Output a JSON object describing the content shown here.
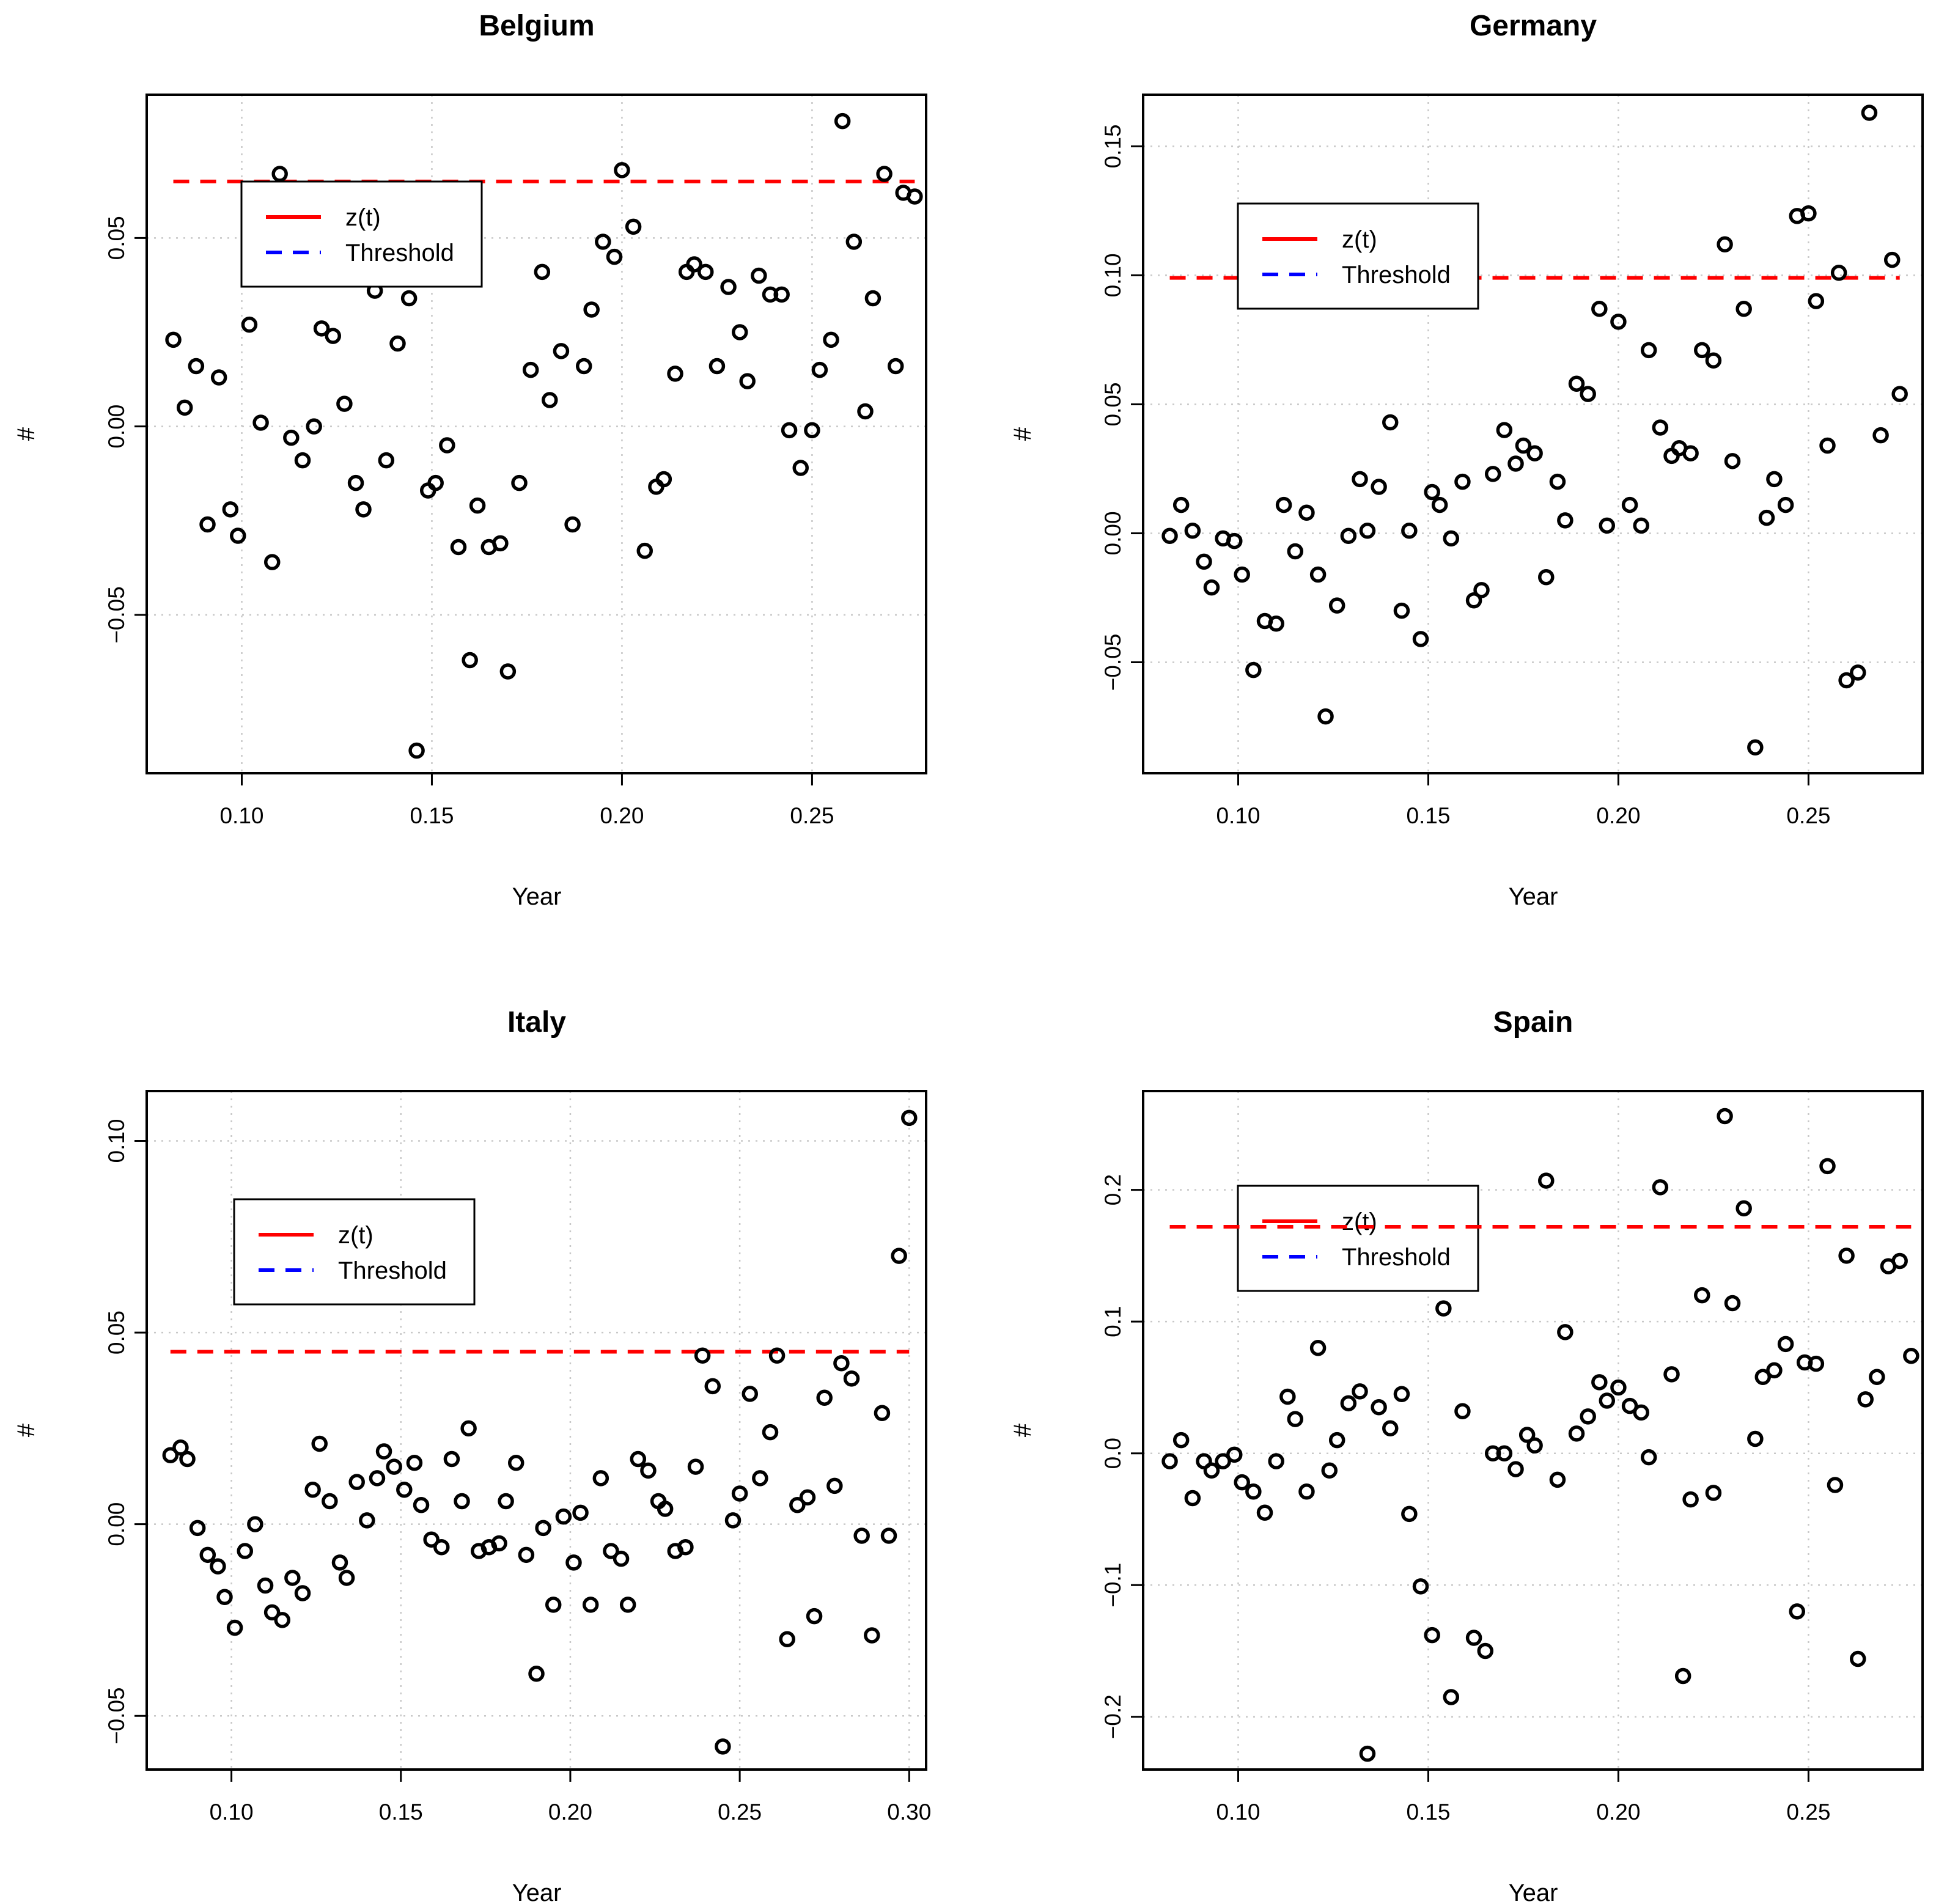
{
  "chart_data": [
    {
      "type": "scatter",
      "title": "Belgium",
      "xlabel": "Year",
      "ylabel": "#",
      "xlim": [
        0.075,
        0.28
      ],
      "ylim": [
        -0.092,
        0.088
      ],
      "xticks": [
        0.1,
        0.15,
        0.2,
        0.25
      ],
      "xtick_labels": [
        "0.10",
        "0.15",
        "0.20",
        "0.25"
      ],
      "yticks": [
        -0.05,
        0.0,
        0.05
      ],
      "ytick_labels": [
        "−0.05",
        "0.00",
        "0.05"
      ],
      "grid": true,
      "threshold": 0.065,
      "legend": {
        "placement": "top-left",
        "entries": [
          {
            "label": "z(t)",
            "color": "#ff0000",
            "style": "solid"
          },
          {
            "label": "Threshold",
            "color": "#0000ff",
            "style": "dashed"
          }
        ]
      },
      "points": {
        "x": [
          0.082,
          0.085,
          0.088,
          0.091,
          0.094,
          0.097,
          0.099,
          0.102,
          0.105,
          0.108,
          0.11,
          0.113,
          0.116,
          0.119,
          0.121,
          0.124,
          0.127,
          0.13,
          0.132,
          0.135,
          0.138,
          0.141,
          0.144,
          0.146,
          0.149,
          0.151,
          0.154,
          0.157,
          0.16,
          0.162,
          0.165,
          0.168,
          0.17,
          0.173,
          0.176,
          0.179,
          0.181,
          0.184,
          0.187,
          0.19,
          0.192,
          0.195,
          0.198,
          0.2,
          0.203,
          0.206,
          0.209,
          0.211,
          0.214,
          0.217,
          0.219,
          0.222,
          0.225,
          0.228,
          0.231,
          0.233,
          0.236,
          0.239,
          0.242,
          0.244,
          0.247,
          0.25,
          0.252,
          0.255,
          0.258,
          0.261,
          0.264,
          0.266,
          0.269,
          0.272,
          0.274,
          0.277
        ],
        "y": [
          0.023,
          0.005,
          0.016,
          -0.026,
          0.013,
          -0.022,
          -0.029,
          0.027,
          0.001,
          -0.036,
          0.067,
          -0.003,
          -0.009,
          0.0,
          0.026,
          0.024,
          0.006,
          -0.015,
          -0.022,
          0.036,
          -0.009,
          0.022,
          0.034,
          -0.086,
          -0.017,
          -0.015,
          -0.005,
          -0.032,
          -0.062,
          -0.021,
          -0.032,
          -0.031,
          -0.065,
          -0.015,
          0.015,
          0.041,
          0.007,
          0.02,
          -0.026,
          0.016,
          0.031,
          0.049,
          0.045,
          0.068,
          0.053,
          -0.033,
          -0.016,
          -0.014,
          0.014,
          0.041,
          0.043,
          0.041,
          0.016,
          0.037,
          0.025,
          0.012,
          0.04,
          0.035,
          0.035,
          -0.001,
          -0.011,
          -0.001,
          0.015,
          0.023,
          0.081,
          0.049,
          0.004,
          0.034,
          0.067,
          0.016,
          0.062,
          0.061
        ]
      }
    },
    {
      "type": "scatter",
      "title": "Germany",
      "xlabel": "Year",
      "ylabel": "#",
      "xlim": [
        0.075,
        0.28
      ],
      "ylim": [
        -0.093,
        0.17
      ],
      "xticks": [
        0.1,
        0.15,
        0.2,
        0.25
      ],
      "xtick_labels": [
        "0.10",
        "0.15",
        "0.20",
        "0.25"
      ],
      "yticks": [
        -0.05,
        0.0,
        0.05,
        0.1,
        0.15
      ],
      "ytick_labels": [
        "−0.05",
        "0.00",
        "0.05",
        "0.10",
        "0.15"
      ],
      "grid": true,
      "threshold": 0.099,
      "legend": {
        "placement": "top-left",
        "entries": [
          {
            "label": "z(t)",
            "color": "#ff0000",
            "style": "solid"
          },
          {
            "label": "Threshold",
            "color": "#0000ff",
            "style": "dashed"
          }
        ]
      },
      "points": {
        "x": [
          0.082,
          0.085,
          0.088,
          0.091,
          0.093,
          0.096,
          0.099,
          0.101,
          0.104,
          0.107,
          0.11,
          0.112,
          0.115,
          0.118,
          0.121,
          0.123,
          0.126,
          0.129,
          0.132,
          0.134,
          0.137,
          0.14,
          0.143,
          0.145,
          0.148,
          0.151,
          0.153,
          0.156,
          0.159,
          0.162,
          0.164,
          0.167,
          0.17,
          0.173,
          0.175,
          0.178,
          0.181,
          0.184,
          0.186,
          0.189,
          0.192,
          0.195,
          0.197,
          0.2,
          0.203,
          0.206,
          0.208,
          0.211,
          0.214,
          0.216,
          0.219,
          0.222,
          0.225,
          0.228,
          0.23,
          0.233,
          0.236,
          0.239,
          0.241,
          0.244,
          0.247,
          0.25,
          0.252,
          0.255,
          0.258,
          0.26,
          0.263,
          0.266,
          0.269,
          0.272,
          0.274
        ],
        "y": [
          -0.001,
          0.011,
          0.001,
          -0.011,
          -0.021,
          -0.002,
          -0.003,
          -0.016,
          -0.053,
          -0.034,
          -0.035,
          0.011,
          -0.007,
          0.008,
          -0.016,
          -0.071,
          -0.028,
          -0.001,
          0.021,
          0.001,
          0.018,
          0.043,
          -0.03,
          0.001,
          -0.041,
          0.016,
          0.011,
          -0.002,
          0.02,
          -0.026,
          -0.022,
          0.023,
          0.04,
          0.027,
          0.034,
          0.031,
          -0.017,
          0.02,
          0.005,
          0.058,
          0.054,
          0.087,
          0.003,
          0.082,
          0.011,
          0.003,
          0.071,
          0.041,
          0.03,
          0.033,
          0.031,
          0.071,
          0.067,
          0.112,
          0.028,
          0.087,
          -0.083,
          0.006,
          0.021,
          0.011,
          0.123,
          0.124,
          0.09,
          0.034,
          0.101,
          -0.057,
          -0.054,
          0.163,
          0.038,
          0.106,
          0.054
        ]
      }
    },
    {
      "type": "scatter",
      "title": "Italy",
      "xlabel": "Year",
      "ylabel": "#",
      "xlim": [
        0.075,
        0.305
      ],
      "ylim": [
        -0.064,
        0.113
      ],
      "xticks": [
        0.1,
        0.15,
        0.2,
        0.25,
        0.3
      ],
      "xtick_labels": [
        "0.10",
        "0.15",
        "0.20",
        "0.25",
        "0.30"
      ],
      "yticks": [
        -0.05,
        0.0,
        0.05,
        0.1
      ],
      "ytick_labels": [
        "−0.05",
        "0.00",
        "0.05",
        "0.10"
      ],
      "grid": true,
      "threshold": 0.045,
      "legend": {
        "placement": "top-left",
        "entries": [
          {
            "label": "z(t)",
            "color": "#ff0000",
            "style": "solid"
          },
          {
            "label": "Threshold",
            "color": "#0000ff",
            "style": "dashed"
          }
        ]
      },
      "points": {
        "x": [
          0.082,
          0.085,
          0.087,
          0.09,
          0.093,
          0.096,
          0.098,
          0.101,
          0.104,
          0.107,
          0.11,
          0.112,
          0.115,
          0.118,
          0.121,
          0.124,
          0.126,
          0.129,
          0.132,
          0.134,
          0.137,
          0.14,
          0.143,
          0.145,
          0.148,
          0.151,
          0.154,
          0.156,
          0.159,
          0.162,
          0.165,
          0.168,
          0.17,
          0.173,
          0.176,
          0.179,
          0.181,
          0.184,
          0.187,
          0.19,
          0.192,
          0.195,
          0.198,
          0.201,
          0.203,
          0.206,
          0.209,
          0.212,
          0.215,
          0.217,
          0.22,
          0.223,
          0.226,
          0.228,
          0.231,
          0.234,
          0.237,
          0.239,
          0.242,
          0.245,
          0.248,
          0.25,
          0.253,
          0.256,
          0.259,
          0.261,
          0.264,
          0.267,
          0.27,
          0.272,
          0.275,
          0.278,
          0.28,
          0.283,
          0.286,
          0.289,
          0.292,
          0.294,
          0.297,
          0.3
        ],
        "y": [
          0.018,
          0.02,
          0.017,
          -0.001,
          -0.008,
          -0.011,
          -0.019,
          -0.027,
          -0.007,
          0.0,
          -0.016,
          -0.023,
          -0.025,
          -0.014,
          -0.018,
          0.009,
          0.021,
          0.006,
          -0.01,
          -0.014,
          0.011,
          0.001,
          0.012,
          0.019,
          0.015,
          0.009,
          0.016,
          0.005,
          -0.004,
          -0.006,
          0.017,
          0.006,
          0.025,
          -0.007,
          -0.006,
          -0.005,
          0.006,
          0.016,
          -0.008,
          -0.039,
          -0.001,
          -0.021,
          0.002,
          -0.01,
          0.003,
          -0.021,
          0.012,
          -0.007,
          -0.009,
          -0.021,
          0.017,
          0.014,
          0.006,
          0.004,
          -0.007,
          -0.006,
          0.015,
          0.044,
          0.036,
          -0.058,
          0.001,
          0.008,
          0.034,
          0.012,
          0.024,
          0.044,
          -0.03,
          0.005,
          0.007,
          -0.024,
          0.033,
          0.01,
          0.042,
          0.038,
          -0.003,
          -0.029,
          0.029,
          -0.003,
          0.07,
          0.106
        ]
      }
    },
    {
      "type": "scatter",
      "title": "Spain",
      "xlabel": "Year",
      "ylabel": "#",
      "xlim": [
        0.075,
        0.28
      ],
      "ylim": [
        -0.24,
        0.275
      ],
      "xticks": [
        0.1,
        0.15,
        0.2,
        0.25
      ],
      "xtick_labels": [
        "0.10",
        "0.15",
        "0.20",
        "0.25"
      ],
      "yticks": [
        -0.2,
        -0.1,
        0.0,
        0.1,
        0.2
      ],
      "ytick_labels": [
        "−0.2",
        "−0.1",
        "0.0",
        "0.1",
        "0.2"
      ],
      "grid": true,
      "threshold": 0.172,
      "legend": {
        "placement": "top-left",
        "entries": [
          {
            "label": "z(t)",
            "color": "#ff0000",
            "style": "solid"
          },
          {
            "label": "Threshold",
            "color": "#0000ff",
            "style": "dashed"
          }
        ]
      },
      "points": {
        "x": [
          0.082,
          0.085,
          0.088,
          0.091,
          0.093,
          0.096,
          0.099,
          0.101,
          0.104,
          0.107,
          0.11,
          0.113,
          0.115,
          0.118,
          0.121,
          0.124,
          0.126,
          0.129,
          0.132,
          0.134,
          0.137,
          0.14,
          0.143,
          0.145,
          0.148,
          0.151,
          0.154,
          0.156,
          0.159,
          0.162,
          0.165,
          0.167,
          0.17,
          0.173,
          0.176,
          0.178,
          0.181,
          0.184,
          0.186,
          0.189,
          0.192,
          0.195,
          0.197,
          0.2,
          0.203,
          0.206,
          0.208,
          0.211,
          0.214,
          0.217,
          0.219,
          0.222,
          0.225,
          0.228,
          0.23,
          0.233,
          0.236,
          0.238,
          0.241,
          0.244,
          0.247,
          0.249,
          0.252,
          0.255,
          0.257,
          0.26,
          0.263,
          0.265,
          0.268,
          0.271,
          0.274,
          0.277
        ],
        "y": [
          -0.006,
          0.01,
          -0.034,
          -0.006,
          -0.013,
          -0.006,
          -0.001,
          -0.022,
          -0.029,
          -0.045,
          -0.006,
          0.043,
          0.026,
          -0.029,
          0.08,
          -0.013,
          0.01,
          0.038,
          0.047,
          -0.228,
          0.035,
          0.019,
          0.045,
          -0.046,
          -0.101,
          -0.138,
          0.11,
          -0.185,
          0.032,
          -0.14,
          -0.15,
          0.0,
          0.0,
          -0.012,
          0.014,
          0.006,
          0.207,
          -0.02,
          0.092,
          0.015,
          0.028,
          0.054,
          0.04,
          0.05,
          0.036,
          0.031,
          -0.003,
          0.202,
          0.06,
          -0.169,
          -0.035,
          0.12,
          -0.03,
          0.256,
          0.114,
          0.186,
          0.011,
          0.058,
          0.063,
          0.083,
          -0.12,
          0.069,
          0.068,
          0.218,
          -0.024,
          0.15,
          -0.156,
          0.041,
          0.058,
          0.142,
          0.146,
          0.074
        ]
      }
    }
  ]
}
